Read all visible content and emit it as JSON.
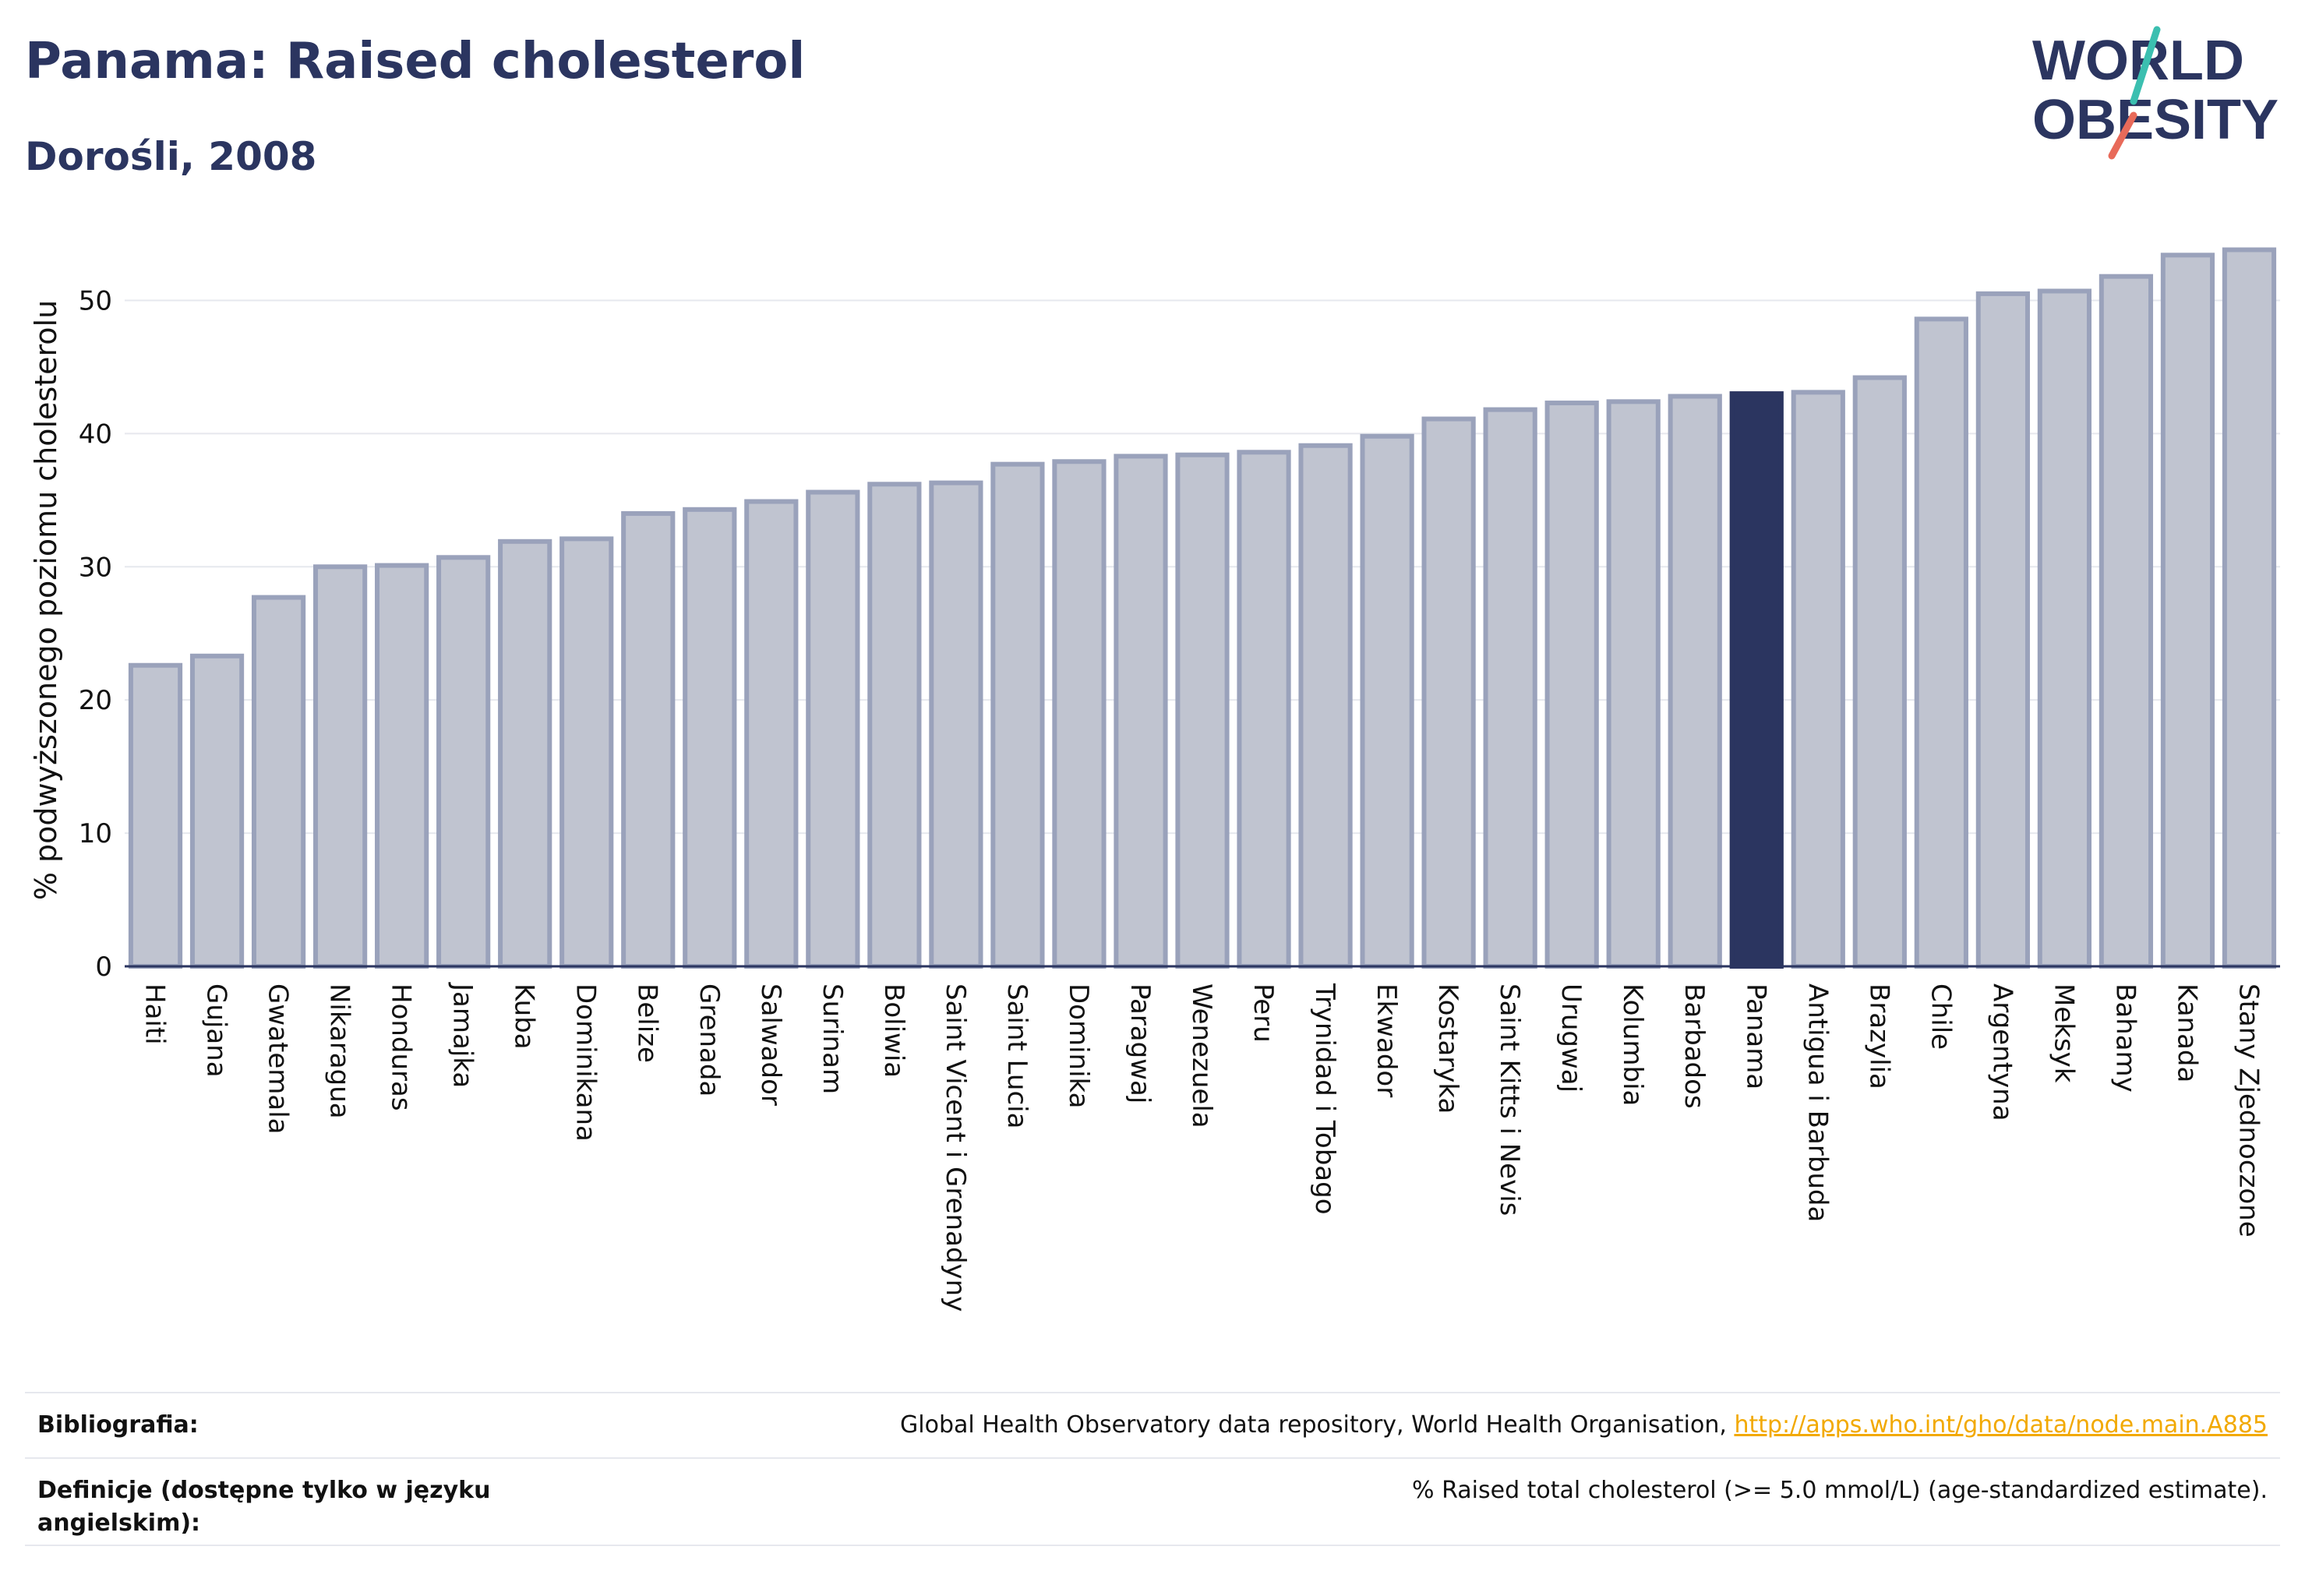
{
  "header": {
    "title": "Panama: Raised cholesterol",
    "subtitle": "Dorośli, 2008",
    "logo_text_1": "WORLD",
    "logo_text_2": "OBESITY"
  },
  "colors": {
    "bar": "#c0c4d0",
    "bar_border": "#9aa2bb",
    "highlight": "#2b3560",
    "text": "#2b3560",
    "link": "#f2a900"
  },
  "chart_data": {
    "type": "bar",
    "ylabel": "% podwyższonego poziomu cholesterolu",
    "ylim": [
      0,
      55
    ],
    "yticks": [
      0,
      10,
      20,
      30,
      40,
      50
    ],
    "grid": true,
    "highlight": "Panama",
    "categories": [
      "Haiti",
      "Gujana",
      "Gwatemala",
      "Nikaragua",
      "Honduras",
      "Jamajka",
      "Kuba",
      "Dominikana",
      "Belize",
      "Grenada",
      "Salwador",
      "Surinam",
      "Boliwia",
      "Saint Vicent i Grenadyny",
      "Saint Lucia",
      "Dominika",
      "Paragwaj",
      "Wenezuela",
      "Peru",
      "Trynidad i Tobago",
      "Ekwador",
      "Kostaryka",
      "Saint Kitts i Nevis",
      "Urugwaj",
      "Kolumbia",
      "Barbados",
      "Panama",
      "Antigua i Barbuda",
      "Brazylia",
      "Chile",
      "Argentyna",
      "Meksyk",
      "Bahamy",
      "Kanada",
      "Stany Zjednoczone"
    ],
    "values": [
      22.6,
      23.3,
      27.7,
      30.0,
      30.1,
      30.7,
      31.9,
      32.1,
      34.0,
      34.3,
      34.9,
      35.6,
      36.2,
      36.3,
      37.7,
      37.9,
      38.3,
      38.4,
      38.6,
      39.1,
      39.8,
      41.1,
      41.8,
      42.3,
      42.4,
      42.8,
      43.0,
      43.1,
      44.2,
      48.6,
      50.5,
      50.7,
      51.8,
      53.4,
      53.8
    ]
  },
  "footer": {
    "bibliography_label": "Bibliografia:",
    "bibliography_text": "Global Health Observatory data repository, World Health Organisation, ",
    "bibliography_link": "http://apps.who.int/gho/data/node.main.A885",
    "definitions_label": "Definicje (dostępne tylko w języku angielskim):",
    "definitions_text": "% Raised total cholesterol (>= 5.0 mmol/L) (age-standardized estimate)."
  }
}
